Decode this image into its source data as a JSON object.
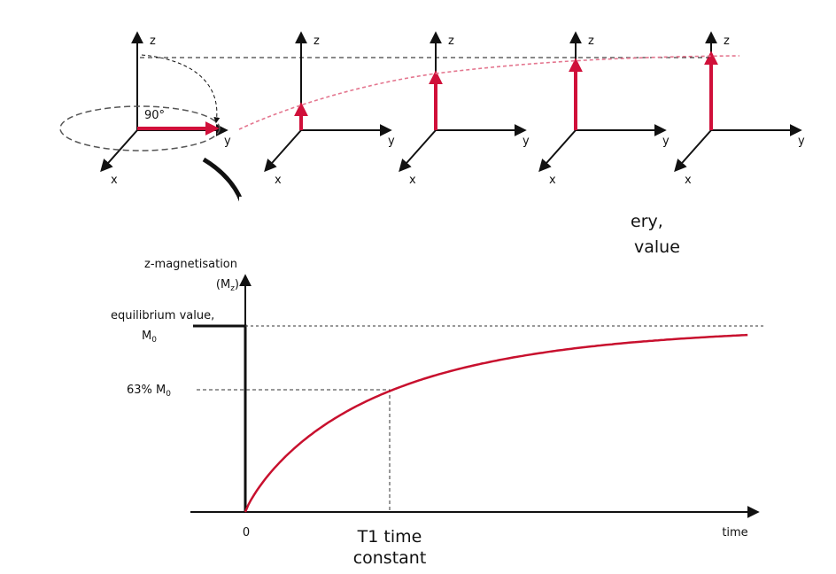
{
  "frames": [
    {
      "z": "z",
      "y": "y",
      "x": "x",
      "angle": "90°"
    },
    {
      "z": "z",
      "y": "y",
      "x": "x"
    },
    {
      "z": "z",
      "y": "y",
      "x": "x"
    },
    {
      "z": "z",
      "y": "y",
      "x": "x"
    },
    {
      "z": "z",
      "y": "y",
      "x": "x"
    }
  ],
  "occluded_caption": {
    "line1": "ery,",
    "line2": "value"
  },
  "graph": {
    "y_label": "z-magnetisation",
    "y_label_symbol": {
      "main": "(M",
      "sub": "z",
      "end": ")"
    },
    "equilibrium_label": "equilibrium value,",
    "equilibrium_symbol": {
      "main": "M",
      "sub": "0"
    },
    "percent_label": {
      "main": "63% M",
      "sub": "0"
    },
    "origin_label": "0",
    "t1_label": {
      "line1": "T1 time",
      "line2": "constant"
    },
    "x_label": "time"
  }
}
